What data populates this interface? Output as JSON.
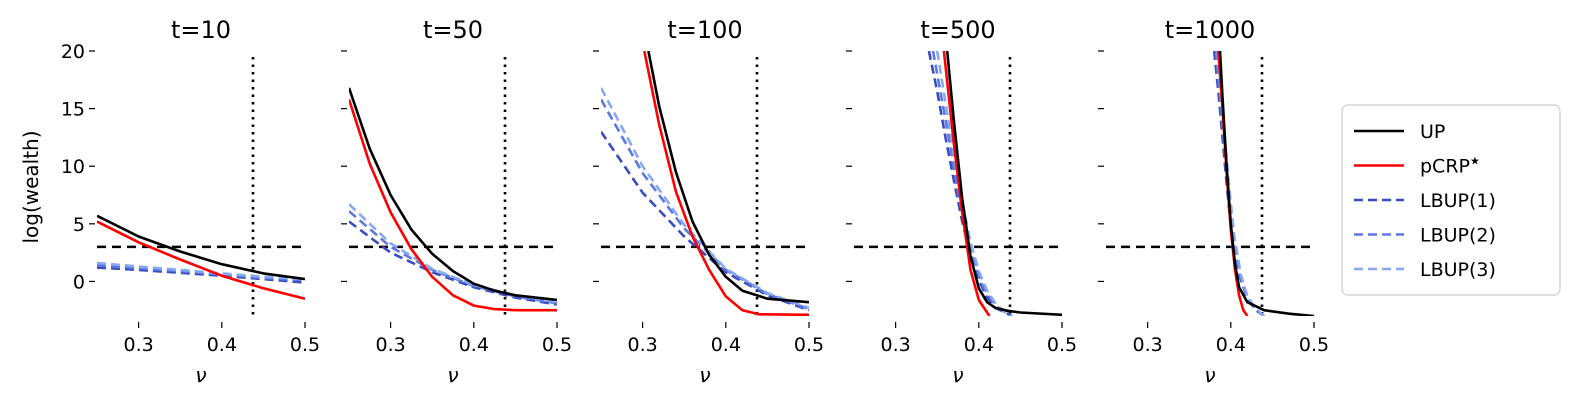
{
  "chart_data": {
    "type": "line",
    "ylabel": "log(wealth)",
    "xlabel": "ν",
    "xlim": [
      0.25,
      0.5
    ],
    "ylim": [
      -3,
      20
    ],
    "xticks": [
      0.3,
      0.4,
      0.5
    ],
    "yticks": [
      0,
      5,
      10,
      15,
      20
    ],
    "grid": false,
    "legend_placement": "right",
    "reference_lines": {
      "horizontal_y": 3,
      "vertical_x": 0.4375
    },
    "legend": [
      {
        "name": "UP",
        "color": "#000000",
        "dashed": false
      },
      {
        "name": "pCRP",
        "sup": "★",
        "color": "#ff0000",
        "dashed": false
      },
      {
        "name": "LBUP(1)",
        "color": "#3a4cc0",
        "dashed": true
      },
      {
        "name": "LBUP(2)",
        "color": "#5b79df",
        "dashed": true
      },
      {
        "name": "LBUP(3)",
        "color": "#86a8f5",
        "dashed": true
      }
    ],
    "panels": [
      {
        "title": "t=10",
        "series": [
          {
            "name": "UP",
            "x": [
              0.25,
              0.3,
              0.35,
              0.4,
              0.45,
              0.5
            ],
            "y": [
              5.7,
              3.9,
              2.6,
              1.5,
              0.7,
              0.2
            ]
          },
          {
            "name": "pCRP",
            "x": [
              0.25,
              0.3,
              0.35,
              0.4,
              0.45,
              0.5
            ],
            "y": [
              5.2,
              3.4,
              1.9,
              0.5,
              -0.6,
              -1.5
            ]
          },
          {
            "name": "LBUP(1)",
            "x": [
              0.25,
              0.3,
              0.35,
              0.4,
              0.45,
              0.5
            ],
            "y": [
              1.2,
              1.0,
              0.75,
              0.5,
              0.2,
              -0.1
            ]
          },
          {
            "name": "LBUP(2)",
            "x": [
              0.25,
              0.3,
              0.35,
              0.4,
              0.45,
              0.5
            ],
            "y": [
              1.4,
              1.15,
              0.9,
              0.6,
              0.3,
              0.1
            ]
          },
          {
            "name": "LBUP(3)",
            "x": [
              0.25,
              0.3,
              0.35,
              0.4,
              0.45,
              0.5
            ],
            "y": [
              1.6,
              1.3,
              1.0,
              0.7,
              0.4,
              0.2
            ]
          }
        ]
      },
      {
        "title": "t=50",
        "series": [
          {
            "name": "UP",
            "x": [
              0.25,
              0.275,
              0.3,
              0.325,
              0.35,
              0.375,
              0.4,
              0.425,
              0.45,
              0.5
            ],
            "y": [
              16.8,
              11.5,
              7.5,
              4.5,
              2.4,
              0.9,
              -0.2,
              -0.8,
              -1.2,
              -1.6
            ]
          },
          {
            "name": "pCRP",
            "x": [
              0.25,
              0.275,
              0.3,
              0.325,
              0.35,
              0.375,
              0.4,
              0.425,
              0.45,
              0.5
            ],
            "y": [
              15.8,
              10.2,
              6.0,
              2.8,
              0.4,
              -1.2,
              -2.1,
              -2.4,
              -2.5,
              -2.5
            ]
          },
          {
            "name": "LBUP(1)",
            "x": [
              0.25,
              0.3,
              0.35,
              0.4,
              0.45,
              0.5
            ],
            "y": [
              5.2,
              2.5,
              0.8,
              -0.5,
              -1.4,
              -2.0
            ]
          },
          {
            "name": "LBUP(2)",
            "x": [
              0.25,
              0.3,
              0.35,
              0.4,
              0.45,
              0.5
            ],
            "y": [
              6.1,
              3.0,
              1.0,
              -0.4,
              -1.3,
              -1.9
            ]
          },
          {
            "name": "LBUP(3)",
            "x": [
              0.25,
              0.3,
              0.35,
              0.4,
              0.45,
              0.5
            ],
            "y": [
              6.7,
              3.3,
              1.1,
              -0.3,
              -1.2,
              -1.8
            ]
          }
        ]
      },
      {
        "title": "t=100",
        "series": [
          {
            "name": "UP",
            "x": [
              0.307,
              0.32,
              0.34,
              0.36,
              0.38,
              0.4,
              0.42,
              0.45,
              0.5
            ],
            "y": [
              20,
              15.2,
              9.5,
              5.2,
              2.3,
              0.4,
              -0.8,
              -1.5,
              -1.8
            ]
          },
          {
            "name": "pCRP",
            "x": [
              0.302,
              0.32,
              0.34,
              0.36,
              0.38,
              0.4,
              0.42,
              0.44,
              0.5
            ],
            "y": [
              20,
              13.6,
              7.8,
              3.9,
              1.0,
              -1.3,
              -2.5,
              -2.85,
              -2.9
            ]
          },
          {
            "name": "LBUP(1)",
            "x": [
              0.25,
              0.3,
              0.35,
              0.4,
              0.45,
              0.5
            ],
            "y": [
              13.0,
              7.7,
              3.9,
              0.8,
              -1.2,
              -2.5
            ]
          },
          {
            "name": "LBUP(2)",
            "x": [
              0.25,
              0.3,
              0.35,
              0.4,
              0.45,
              0.5
            ],
            "y": [
              15.8,
              9.4,
              4.6,
              1.0,
              -1.1,
              -2.4
            ]
          },
          {
            "name": "LBUP(3)",
            "x": [
              0.25,
              0.3,
              0.35,
              0.4,
              0.45,
              0.5
            ],
            "y": [
              16.8,
              10.0,
              4.9,
              1.1,
              -1.0,
              -2.3
            ]
          }
        ]
      },
      {
        "title": "t=500",
        "series": [
          {
            "name": "UP",
            "x": [
              0.362,
              0.37,
              0.38,
              0.39,
              0.4,
              0.41,
              0.42,
              0.435,
              0.45,
              0.5
            ],
            "y": [
              20,
              14,
              7.2,
              2.2,
              -0.6,
              -1.8,
              -2.3,
              -2.55,
              -2.7,
              -2.9
            ]
          },
          {
            "name": "pCRP",
            "x": [
              0.358,
              0.37,
              0.38,
              0.39,
              0.4,
              0.41,
              0.413
            ],
            "y": [
              20,
              12,
              6,
              1.0,
              -1.6,
              -2.7,
              -3
            ]
          },
          {
            "name": "LBUP(1)",
            "x": [
              0.34,
              0.35,
              0.36,
              0.37,
              0.38,
              0.39,
              0.4,
              0.41,
              0.42,
              0.44
            ],
            "y": [
              20,
              16.5,
              12.5,
              8.8,
              5.2,
              2.3,
              0.1,
              -1.4,
              -2.3,
              -3
            ]
          },
          {
            "name": "LBUP(2)",
            "x": [
              0.345,
              0.355,
              0.365,
              0.375,
              0.385,
              0.395,
              0.405,
              0.415,
              0.425,
              0.44
            ],
            "y": [
              20,
              16,
              12,
              7.8,
              4.2,
              1.6,
              -0.4,
              -1.6,
              -2.4,
              -3
            ]
          },
          {
            "name": "LBUP(3)",
            "x": [
              0.35,
              0.36,
              0.37,
              0.38,
              0.39,
              0.4,
              0.41,
              0.42,
              0.43,
              0.44
            ],
            "y": [
              20,
              15.5,
              11,
              7,
              3.4,
              0.9,
              -0.8,
              -1.9,
              -2.6,
              -3
            ]
          }
        ]
      },
      {
        "title": "t=1000",
        "series": [
          {
            "name": "UP",
            "x": [
              0.387,
              0.39,
              0.395,
              0.4,
              0.405,
              0.41,
              0.42,
              0.44,
              0.47,
              0.5
            ],
            "y": [
              20,
              16,
              10,
              5,
              1.5,
              -0.5,
              -1.8,
              -2.5,
              -2.8,
              -3
            ]
          },
          {
            "name": "pCRP",
            "x": [
              0.385,
              0.39,
              0.395,
              0.4,
              0.405,
              0.41,
              0.415,
              0.42
            ],
            "y": [
              20,
              15,
              9.5,
              4.5,
              1.0,
              -1.2,
              -2.5,
              -3
            ]
          },
          {
            "name": "LBUP(1)",
            "x": [
              0.38,
              0.385,
              0.39,
              0.395,
              0.4,
              0.41,
              0.42,
              0.43,
              0.44
            ],
            "y": [
              20,
              16.5,
              12.5,
              8.5,
              4.8,
              0.6,
              -1.5,
              -2.5,
              -3
            ]
          },
          {
            "name": "LBUP(2)",
            "x": [
              0.382,
              0.387,
              0.392,
              0.397,
              0.402,
              0.41,
              0.42,
              0.43,
              0.44
            ],
            "y": [
              20,
              16,
              12,
              8,
              4.3,
              0.8,
              -1.4,
              -2.4,
              -3
            ]
          },
          {
            "name": "LBUP(3)",
            "x": [
              0.384,
              0.389,
              0.394,
              0.399,
              0.404,
              0.412,
              0.42,
              0.43,
              0.44
            ],
            "y": [
              20,
              15.5,
              11.5,
              7.5,
              4.0,
              0.6,
              -1.3,
              -2.4,
              -3
            ]
          }
        ]
      }
    ]
  }
}
